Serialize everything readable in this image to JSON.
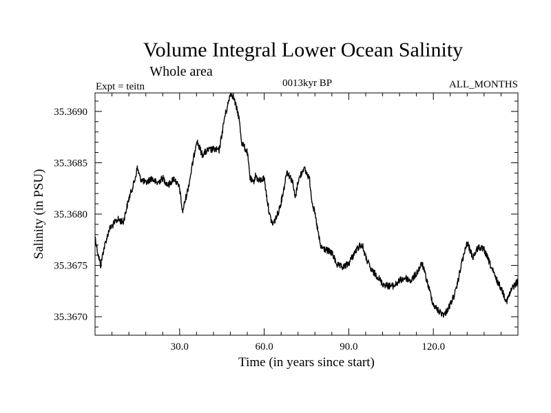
{
  "chart_data": {
    "type": "line",
    "title": "Volume Integral Lower Ocean Salinity",
    "subtitle": "Whole area",
    "annotations": {
      "left": "Expt = teitn",
      "center": "0013kyr BP",
      "right": "ALL_MONTHS"
    },
    "xlabel": "Time (in years since start)",
    "ylabel": "Salinity (in PSU)",
    "xlim": [
      0,
      150
    ],
    "ylim": [
      35.36682,
      35.36918
    ],
    "xticks": [
      {
        "value": 30,
        "label": "30.0"
      },
      {
        "value": 60,
        "label": "60.0"
      },
      {
        "value": 90,
        "label": "90.0"
      },
      {
        "value": 120,
        "label": "120.0"
      }
    ],
    "yticks": [
      {
        "value": 35.367,
        "label": "35.3670"
      },
      {
        "value": 35.3675,
        "label": "35.3675"
      },
      {
        "value": 35.368,
        "label": "35.3680"
      },
      {
        "value": 35.3685,
        "label": "35.3685"
      },
      {
        "value": 35.369,
        "label": "35.3690"
      }
    ],
    "grid": false,
    "series": [
      {
        "name": "Salinity",
        "color": "#000000",
        "x": [
          0,
          1,
          2,
          3,
          5,
          8,
          10,
          12,
          14,
          15,
          16,
          18,
          20,
          22,
          24,
          26,
          28,
          30,
          31,
          33,
          35,
          36,
          37,
          38,
          40,
          42,
          44,
          45,
          46,
          47,
          48,
          49,
          50,
          51,
          52,
          53,
          54,
          55,
          56,
          57,
          58,
          60,
          61,
          62,
          63,
          64,
          65,
          66,
          67,
          68,
          70,
          71,
          72,
          74,
          76,
          77,
          78,
          80,
          82,
          84,
          86,
          88,
          90,
          92,
          94,
          95,
          96,
          98,
          100,
          102,
          104,
          106,
          108,
          110,
          112,
          114,
          116,
          118,
          120,
          122,
          124,
          126,
          128,
          130,
          132,
          134,
          136,
          138,
          140,
          142,
          144,
          146,
          148,
          150
        ],
        "y": [
          35.36778,
          35.36762,
          35.3675,
          35.36765,
          35.36785,
          35.36795,
          35.36792,
          35.36815,
          35.36832,
          35.36845,
          35.36835,
          35.3683,
          35.36835,
          35.3683,
          35.36835,
          35.36828,
          35.36835,
          35.36825,
          35.36802,
          35.36825,
          35.36855,
          35.36872,
          35.36865,
          35.36858,
          35.36862,
          35.36863,
          35.36862,
          35.36878,
          35.36895,
          35.36905,
          35.36918,
          35.36915,
          35.36905,
          35.36895,
          35.3687,
          35.36865,
          35.3686,
          35.36835,
          35.3683,
          35.36838,
          35.36832,
          35.36835,
          35.36815,
          35.36798,
          35.3679,
          35.36795,
          35.36802,
          35.36812,
          35.36825,
          35.36842,
          35.36832,
          35.36815,
          35.36832,
          35.36845,
          35.36835,
          35.36812,
          35.368,
          35.36768,
          35.36765,
          35.36762,
          35.3675,
          35.36748,
          35.36752,
          35.36762,
          35.3677,
          35.36768,
          35.36758,
          35.36745,
          35.3674,
          35.36732,
          35.3673,
          35.3673,
          35.36735,
          35.36738,
          35.36735,
          35.36742,
          35.36752,
          35.36732,
          35.36712,
          35.36705,
          35.36702,
          35.36712,
          35.36725,
          35.36752,
          35.36772,
          35.36758,
          35.36768,
          35.36765,
          35.36752,
          35.36738,
          35.36728,
          35.36715,
          35.36728,
          35.36735
        ]
      }
    ]
  }
}
